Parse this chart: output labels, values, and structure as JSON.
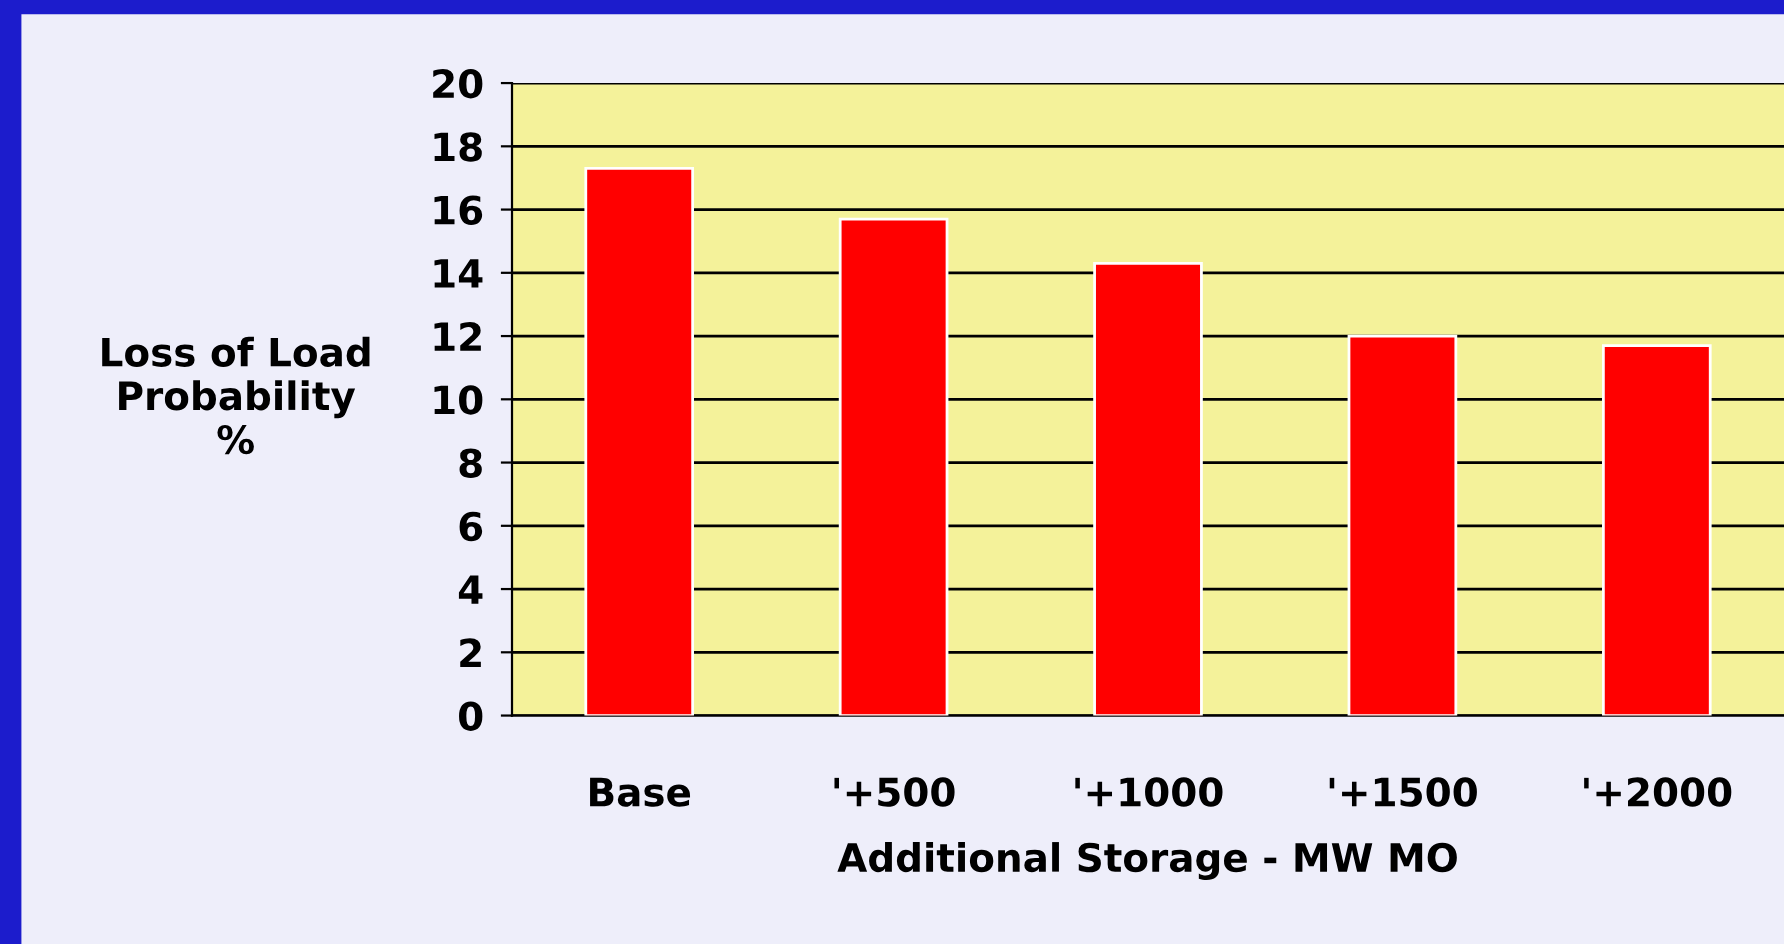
{
  "chart_data": {
    "type": "bar",
    "categories": [
      "Base",
      "'+500",
      "'+1000",
      "'+1500",
      "'+2000"
    ],
    "values": [
      17.3,
      15.7,
      14.3,
      12.0,
      11.7
    ],
    "color": "#ff0000",
    "xlabel": "Additional Storage - MW MO",
    "ylabel": "Loss of Load\nProbability\n%",
    "ylim": [
      0,
      20
    ],
    "yticks": [
      0,
      2,
      4,
      6,
      8,
      10,
      12,
      14,
      16,
      18,
      20
    ],
    "grid": "y",
    "legend": false
  }
}
